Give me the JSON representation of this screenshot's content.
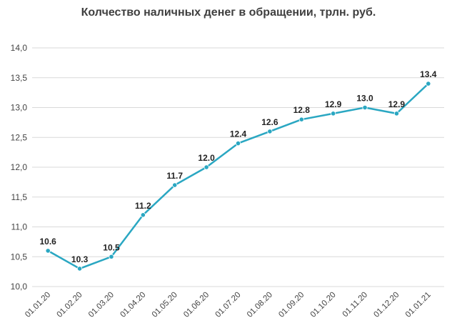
{
  "chart_data": {
    "type": "line",
    "title": "Колчество наличных денег в обращении, трлн. руб.",
    "xlabel": "",
    "ylabel": "",
    "categories": [
      "01.01.20",
      "01.02.20",
      "01.03.20",
      "01.04.20",
      "01.05.20",
      "01.06.20",
      "01.07.20",
      "01.08.20",
      "01.09.20",
      "01.10.20",
      "01.11.20",
      "01.12.20",
      "01.01.21"
    ],
    "series": [
      {
        "values": [
          10.6,
          10.3,
          10.5,
          11.2,
          11.7,
          12.0,
          12.4,
          12.6,
          12.8,
          12.9,
          13.0,
          12.9,
          13.4
        ],
        "labels": [
          "10.6",
          "10.3",
          "10.5",
          "11.2",
          "11.7",
          "12.0",
          "12.4",
          "12.6",
          "12.8",
          "12.9",
          "13.0",
          "12.9",
          "13.4"
        ]
      }
    ],
    "ylim": [
      10.0,
      14.0
    ],
    "yticks": [
      10.0,
      10.5,
      11.0,
      11.5,
      12.0,
      12.5,
      13.0,
      13.5,
      14.0
    ],
    "ytick_labels": [
      "10,0",
      "10,5",
      "11,0",
      "11,5",
      "12,0",
      "12,5",
      "13,0",
      "13,5",
      "14,0"
    ],
    "grid": true,
    "legend": "none",
    "colors": {
      "line": "#2AA7C2",
      "marker": "#2AA7C2",
      "grid": "#D9D9D9"
    }
  }
}
